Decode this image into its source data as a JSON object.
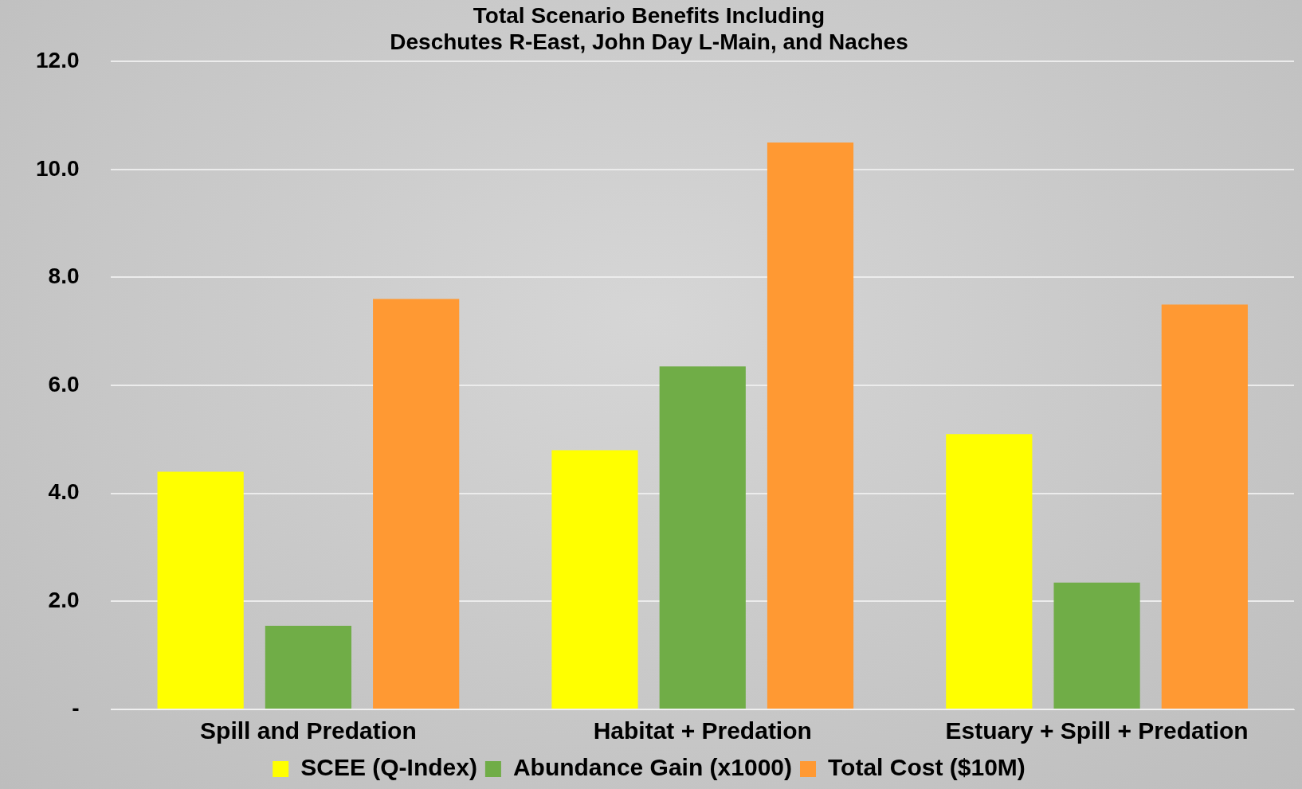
{
  "chart_data": {
    "type": "bar",
    "title": "Total Scenario Benefits Including\nDeschutes R-East, John Day L-Main, and Naches",
    "categories": [
      "Spill and Predation",
      "Habitat + Predation",
      "Estuary + Spill + Predation"
    ],
    "series": [
      {
        "name": "SCEE (Q-Index)",
        "color": "#ffff00",
        "values": [
          4.4,
          4.8,
          5.1
        ]
      },
      {
        "name": "Abundance Gain (x1000)",
        "color": "#70ad47",
        "values": [
          1.55,
          6.35,
          2.35
        ]
      },
      {
        "name": "Total Cost ($10M)",
        "color": "#ff9933",
        "values": [
          7.6,
          10.5,
          7.5
        ]
      }
    ],
    "ylim": [
      0,
      12
    ],
    "yticks": [
      {
        "value": 0,
        "label": "-"
      },
      {
        "value": 2,
        "label": "2.0"
      },
      {
        "value": 4,
        "label": "4.0"
      },
      {
        "value": 6,
        "label": "6.0"
      },
      {
        "value": 8,
        "label": "8.0"
      },
      {
        "value": 10,
        "label": "10.0"
      },
      {
        "value": 12,
        "label": "12.0"
      }
    ],
    "grid": "y",
    "legend": "bottom"
  }
}
